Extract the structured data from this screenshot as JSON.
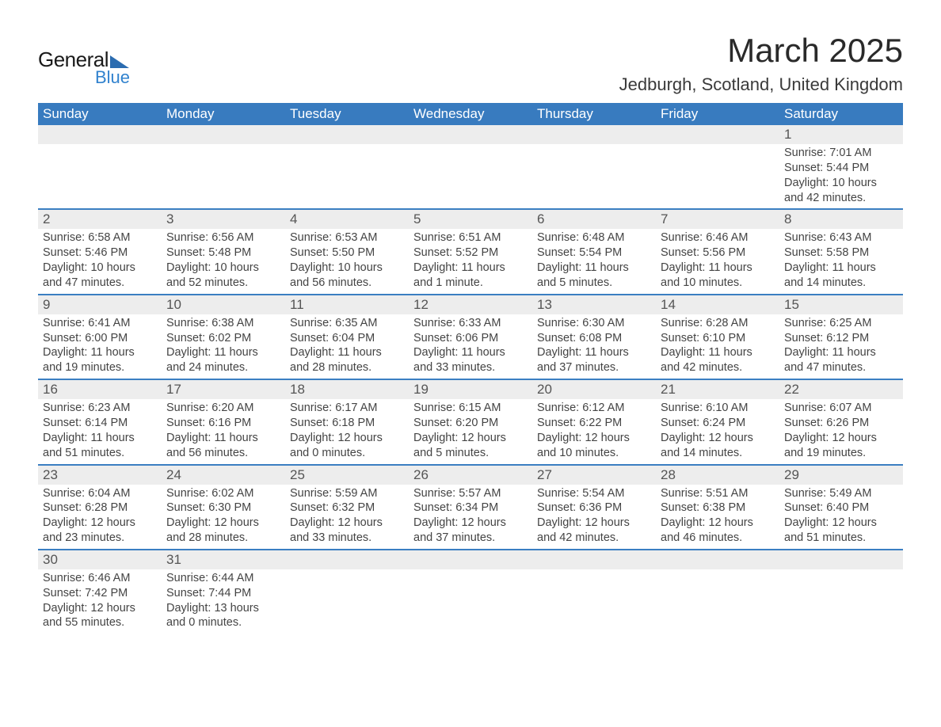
{
  "logo": {
    "text_general": "General",
    "text_blue": "Blue",
    "shape_color": "#2b6cb0",
    "text_general_color": "#1a1a1a",
    "text_blue_color": "#3182ce"
  },
  "title": "March 2025",
  "location": "Jedburgh, Scotland, United Kingdom",
  "colors": {
    "header_bg": "#387bbf",
    "header_text": "#ffffff",
    "daynum_bg": "#ededed",
    "daynum_text": "#555555",
    "row_divider": "#3b7fc2",
    "body_text": "#444444",
    "page_bg": "#ffffff"
  },
  "fonts": {
    "title_size_pt": 32,
    "location_size_pt": 17,
    "header_size_pt": 13,
    "daynum_size_pt": 13,
    "detail_size_pt": 11
  },
  "day_headers": [
    "Sunday",
    "Monday",
    "Tuesday",
    "Wednesday",
    "Thursday",
    "Friday",
    "Saturday"
  ],
  "weeks": [
    [
      null,
      null,
      null,
      null,
      null,
      null,
      {
        "n": "1",
        "sunrise": "Sunrise: 7:01 AM",
        "sunset": "Sunset: 5:44 PM",
        "daylight": "Daylight: 10 hours and 42 minutes."
      }
    ],
    [
      {
        "n": "2",
        "sunrise": "Sunrise: 6:58 AM",
        "sunset": "Sunset: 5:46 PM",
        "daylight": "Daylight: 10 hours and 47 minutes."
      },
      {
        "n": "3",
        "sunrise": "Sunrise: 6:56 AM",
        "sunset": "Sunset: 5:48 PM",
        "daylight": "Daylight: 10 hours and 52 minutes."
      },
      {
        "n": "4",
        "sunrise": "Sunrise: 6:53 AM",
        "sunset": "Sunset: 5:50 PM",
        "daylight": "Daylight: 10 hours and 56 minutes."
      },
      {
        "n": "5",
        "sunrise": "Sunrise: 6:51 AM",
        "sunset": "Sunset: 5:52 PM",
        "daylight": "Daylight: 11 hours and 1 minute."
      },
      {
        "n": "6",
        "sunrise": "Sunrise: 6:48 AM",
        "sunset": "Sunset: 5:54 PM",
        "daylight": "Daylight: 11 hours and 5 minutes."
      },
      {
        "n": "7",
        "sunrise": "Sunrise: 6:46 AM",
        "sunset": "Sunset: 5:56 PM",
        "daylight": "Daylight: 11 hours and 10 minutes."
      },
      {
        "n": "8",
        "sunrise": "Sunrise: 6:43 AM",
        "sunset": "Sunset: 5:58 PM",
        "daylight": "Daylight: 11 hours and 14 minutes."
      }
    ],
    [
      {
        "n": "9",
        "sunrise": "Sunrise: 6:41 AM",
        "sunset": "Sunset: 6:00 PM",
        "daylight": "Daylight: 11 hours and 19 minutes."
      },
      {
        "n": "10",
        "sunrise": "Sunrise: 6:38 AM",
        "sunset": "Sunset: 6:02 PM",
        "daylight": "Daylight: 11 hours and 24 minutes."
      },
      {
        "n": "11",
        "sunrise": "Sunrise: 6:35 AM",
        "sunset": "Sunset: 6:04 PM",
        "daylight": "Daylight: 11 hours and 28 minutes."
      },
      {
        "n": "12",
        "sunrise": "Sunrise: 6:33 AM",
        "sunset": "Sunset: 6:06 PM",
        "daylight": "Daylight: 11 hours and 33 minutes."
      },
      {
        "n": "13",
        "sunrise": "Sunrise: 6:30 AM",
        "sunset": "Sunset: 6:08 PM",
        "daylight": "Daylight: 11 hours and 37 minutes."
      },
      {
        "n": "14",
        "sunrise": "Sunrise: 6:28 AM",
        "sunset": "Sunset: 6:10 PM",
        "daylight": "Daylight: 11 hours and 42 minutes."
      },
      {
        "n": "15",
        "sunrise": "Sunrise: 6:25 AM",
        "sunset": "Sunset: 6:12 PM",
        "daylight": "Daylight: 11 hours and 47 minutes."
      }
    ],
    [
      {
        "n": "16",
        "sunrise": "Sunrise: 6:23 AM",
        "sunset": "Sunset: 6:14 PM",
        "daylight": "Daylight: 11 hours and 51 minutes."
      },
      {
        "n": "17",
        "sunrise": "Sunrise: 6:20 AM",
        "sunset": "Sunset: 6:16 PM",
        "daylight": "Daylight: 11 hours and 56 minutes."
      },
      {
        "n": "18",
        "sunrise": "Sunrise: 6:17 AM",
        "sunset": "Sunset: 6:18 PM",
        "daylight": "Daylight: 12 hours and 0 minutes."
      },
      {
        "n": "19",
        "sunrise": "Sunrise: 6:15 AM",
        "sunset": "Sunset: 6:20 PM",
        "daylight": "Daylight: 12 hours and 5 minutes."
      },
      {
        "n": "20",
        "sunrise": "Sunrise: 6:12 AM",
        "sunset": "Sunset: 6:22 PM",
        "daylight": "Daylight: 12 hours and 10 minutes."
      },
      {
        "n": "21",
        "sunrise": "Sunrise: 6:10 AM",
        "sunset": "Sunset: 6:24 PM",
        "daylight": "Daylight: 12 hours and 14 minutes."
      },
      {
        "n": "22",
        "sunrise": "Sunrise: 6:07 AM",
        "sunset": "Sunset: 6:26 PM",
        "daylight": "Daylight: 12 hours and 19 minutes."
      }
    ],
    [
      {
        "n": "23",
        "sunrise": "Sunrise: 6:04 AM",
        "sunset": "Sunset: 6:28 PM",
        "daylight": "Daylight: 12 hours and 23 minutes."
      },
      {
        "n": "24",
        "sunrise": "Sunrise: 6:02 AM",
        "sunset": "Sunset: 6:30 PM",
        "daylight": "Daylight: 12 hours and 28 minutes."
      },
      {
        "n": "25",
        "sunrise": "Sunrise: 5:59 AM",
        "sunset": "Sunset: 6:32 PM",
        "daylight": "Daylight: 12 hours and 33 minutes."
      },
      {
        "n": "26",
        "sunrise": "Sunrise: 5:57 AM",
        "sunset": "Sunset: 6:34 PM",
        "daylight": "Daylight: 12 hours and 37 minutes."
      },
      {
        "n": "27",
        "sunrise": "Sunrise: 5:54 AM",
        "sunset": "Sunset: 6:36 PM",
        "daylight": "Daylight: 12 hours and 42 minutes."
      },
      {
        "n": "28",
        "sunrise": "Sunrise: 5:51 AM",
        "sunset": "Sunset: 6:38 PM",
        "daylight": "Daylight: 12 hours and 46 minutes."
      },
      {
        "n": "29",
        "sunrise": "Sunrise: 5:49 AM",
        "sunset": "Sunset: 6:40 PM",
        "daylight": "Daylight: 12 hours and 51 minutes."
      }
    ],
    [
      {
        "n": "30",
        "sunrise": "Sunrise: 6:46 AM",
        "sunset": "Sunset: 7:42 PM",
        "daylight": "Daylight: 12 hours and 55 minutes."
      },
      {
        "n": "31",
        "sunrise": "Sunrise: 6:44 AM",
        "sunset": "Sunset: 7:44 PM",
        "daylight": "Daylight: 13 hours and 0 minutes."
      },
      null,
      null,
      null,
      null,
      null
    ]
  ]
}
